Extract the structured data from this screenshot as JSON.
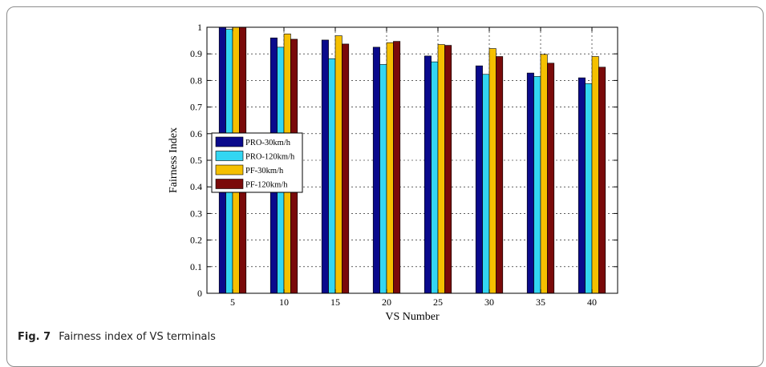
{
  "caption": {
    "label": "Fig. 7",
    "text": "Fairness index of VS terminals"
  },
  "chart_data": {
    "type": "bar",
    "xlabel": "VS Number",
    "ylabel": "Fairness Index",
    "categories": [
      "5",
      "10",
      "15",
      "20",
      "25",
      "30",
      "35",
      "40"
    ],
    "ylim": [
      0,
      1
    ],
    "yticks": [
      "0",
      "0.1",
      "0.2",
      "0.3",
      "0.4",
      "0.5",
      "0.6",
      "0.7",
      "0.8",
      "0.9",
      "1"
    ],
    "grid": true,
    "legend_position": "left",
    "series": [
      {
        "name": "PRO-30km/h",
        "color": "#0a0a8c",
        "values": [
          1.0,
          0.96,
          0.952,
          0.925,
          0.892,
          0.855,
          0.828,
          0.81
        ]
      },
      {
        "name": "PRO-120km/h",
        "color": "#33d6f2",
        "values": [
          0.992,
          0.925,
          0.882,
          0.86,
          0.87,
          0.823,
          0.815,
          0.788
        ]
      },
      {
        "name": "PF-30km/h",
        "color": "#f5c000",
        "values": [
          1.0,
          0.975,
          0.968,
          0.942,
          0.935,
          0.92,
          0.898,
          0.89
        ]
      },
      {
        "name": "PF-120km/h",
        "color": "#7a0a0a",
        "values": [
          1.0,
          0.955,
          0.937,
          0.947,
          0.932,
          0.89,
          0.865,
          0.85
        ]
      }
    ]
  }
}
